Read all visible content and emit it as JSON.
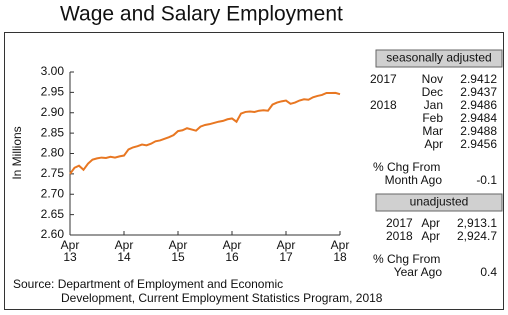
{
  "chart_data": {
    "type": "line",
    "title": "Wage and Salary Employment",
    "y_label": "In Millions",
    "categories": [
      "Apr 13",
      null,
      null,
      null,
      null,
      null,
      null,
      null,
      null,
      null,
      null,
      null,
      "Apr 14",
      null,
      null,
      null,
      null,
      null,
      null,
      null,
      null,
      null,
      null,
      null,
      "Apr 15",
      null,
      null,
      null,
      null,
      null,
      null,
      null,
      null,
      null,
      null,
      null,
      "Apr 16",
      null,
      null,
      null,
      null,
      null,
      null,
      null,
      null,
      null,
      null,
      null,
      "Apr 17",
      null,
      null,
      null,
      null,
      null,
      null,
      null,
      null,
      null,
      null,
      null,
      "Apr 18"
    ],
    "values": [
      2.75,
      2.765,
      2.77,
      2.76,
      2.775,
      2.785,
      2.788,
      2.79,
      2.789,
      2.792,
      2.79,
      2.793,
      2.795,
      2.81,
      2.815,
      2.818,
      2.822,
      2.82,
      2.824,
      2.83,
      2.832,
      2.836,
      2.84,
      2.845,
      2.855,
      2.857,
      2.862,
      2.859,
      2.856,
      2.866,
      2.87,
      2.872,
      2.875,
      2.878,
      2.88,
      2.884,
      2.886,
      2.878,
      2.898,
      2.902,
      2.903,
      2.902,
      2.905,
      2.906,
      2.905,
      2.92,
      2.925,
      2.928,
      2.93,
      2.922,
      2.925,
      2.93,
      2.933,
      2.932,
      2.938,
      2.9412,
      2.9437,
      2.9486,
      2.9484,
      2.9488,
      2.9456
    ],
    "color": "#e87722",
    "ylim": [
      2.6,
      3.0
    ],
    "yticks": [
      {
        "value": 2.6,
        "label": "2.60"
      },
      {
        "value": 2.65,
        "label": "2.65"
      },
      {
        "value": 2.7,
        "label": "2.70"
      },
      {
        "value": 2.75,
        "label": "2.75"
      },
      {
        "value": 2.8,
        "label": "2.80"
      },
      {
        "value": 2.85,
        "label": "2.85"
      },
      {
        "value": 2.9,
        "label": "2.90"
      },
      {
        "value": 2.95,
        "label": "2.95"
      },
      {
        "value": 3.0,
        "label": "3.00"
      }
    ],
    "grid": false
  },
  "panel": {
    "seasonally_adjusted": {
      "header": "seasonally adjusted",
      "rows": [
        {
          "year": "2017",
          "month": "Nov",
          "value": "2.9412"
        },
        {
          "year": null,
          "month": "Dec",
          "value": "2.9437"
        },
        {
          "year": "2018",
          "month": "Jan",
          "value": "2.9486"
        },
        {
          "year": null,
          "month": "Feb",
          "value": "2.9484"
        },
        {
          "year": null,
          "month": "Mar",
          "value": "2.9488"
        },
        {
          "year": null,
          "month": "Apr",
          "value": "2.9456"
        }
      ],
      "change_label": [
        "% Chg From",
        "Month Ago"
      ],
      "change_value": -0.1
    },
    "unadjusted": {
      "header": "unadjusted",
      "rows": [
        {
          "year": "2017",
          "month": "Apr",
          "value": "2,913.1"
        },
        {
          "year": "2018",
          "month": "Apr",
          "value": "2,924.7"
        }
      ],
      "change_label": [
        "% Chg From",
        "Year Ago"
      ],
      "change_value": 0.4
    }
  },
  "source": [
    "Source:  Department of Employment and Economic",
    "Development, Current Employment Statistics Program, 2018"
  ]
}
